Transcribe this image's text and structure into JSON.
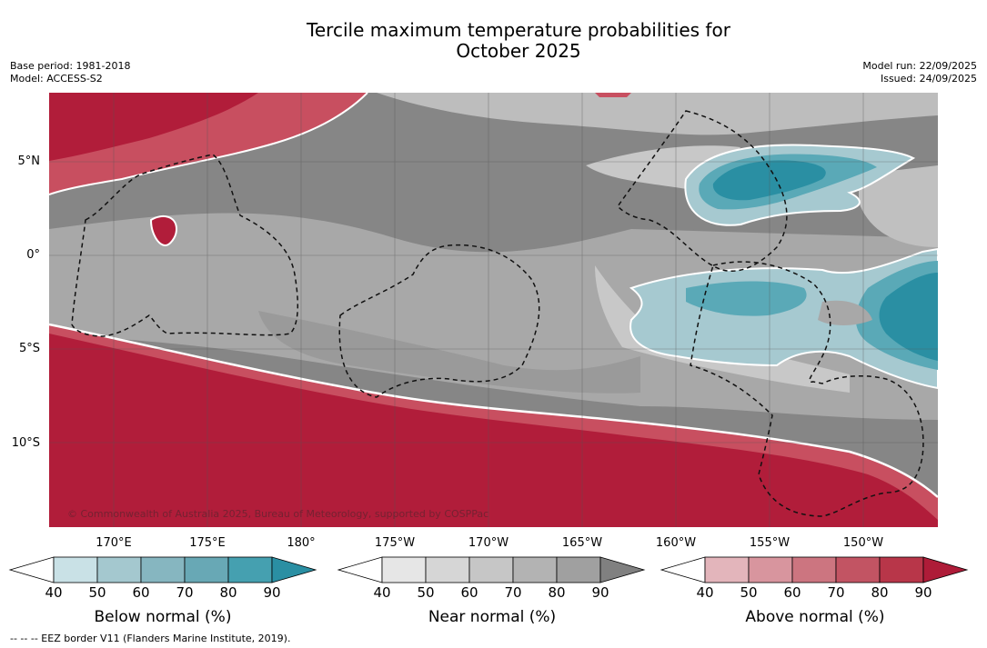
{
  "header": {
    "title_line1": "Tercile maximum temperature probabilities for",
    "title_line2": "October 2025",
    "base_period": "Base period: 1981-2018",
    "model": "Model: ACCESS-S2",
    "model_run": "Model run: 22/09/2025",
    "issued": "Issued: 24/09/2025"
  },
  "map": {
    "lat_labels": [
      "5°N",
      "0°",
      "5°S",
      "10°S"
    ],
    "lon_labels": [
      "170°E",
      "175°E",
      "180°",
      "175°W",
      "170°W",
      "165°W",
      "160°W",
      "155°W",
      "150°W"
    ],
    "copyright": "© Commonwealth of Australia 2025, Bureau of Meteorology, supported by COSPPac",
    "colors": {
      "above_strong": "#b11d3a",
      "above_mid": "#c84f60",
      "near_dark": "#868686",
      "near_mid": "#a8a8a8",
      "near_light": "#c8c8c8",
      "below_strong": "#2a8fa3",
      "below_mid": "#5aa9b7",
      "below_light": "#a6c9d0"
    }
  },
  "legend": {
    "ticks": [
      "40",
      "50",
      "60",
      "70",
      "80",
      "90"
    ],
    "below_label": "Below normal (%)",
    "near_label": "Near normal (%)",
    "above_label": "Above normal (%)",
    "below_colors": [
      "#c9e1e6",
      "#a4c8cf",
      "#86b6c0",
      "#68a8b5",
      "#45a0b0",
      "#2a8fa3"
    ],
    "near_colors": [
      "#e6e6e6",
      "#d6d6d6",
      "#c6c6c6",
      "#b3b3b3",
      "#a0a0a0",
      "#808080"
    ],
    "above_colors": [
      "#e3b5bb",
      "#d8959e",
      "#cc7580",
      "#c25463",
      "#b83649",
      "#ae1c38"
    ]
  },
  "footnote": "-- -- -- EEZ border V11 (Flanders Marine Institute, 2019)."
}
